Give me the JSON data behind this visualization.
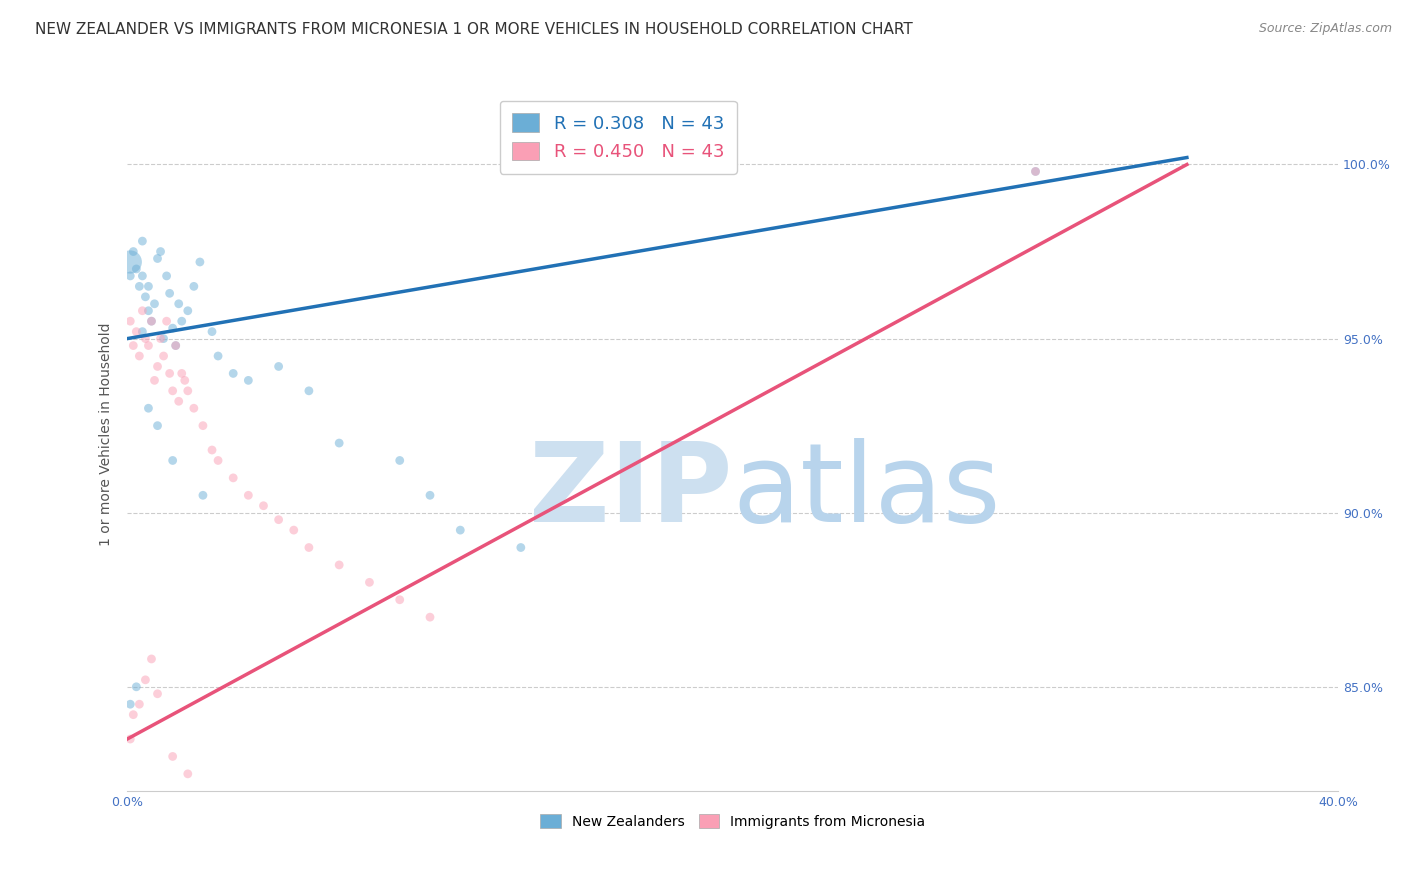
{
  "title": "NEW ZEALANDER VS IMMIGRANTS FROM MICRONESIA 1 OR MORE VEHICLES IN HOUSEHOLD CORRELATION CHART",
  "source": "Source: ZipAtlas.com",
  "ylabel": "1 or more Vehicles in Household",
  "nz_color": "#6baed6",
  "im_color": "#fa9fb5",
  "nz_line_color": "#2171b5",
  "im_line_color": "#e8537a",
  "background_color": "#ffffff",
  "grid_color": "#cccccc",
  "watermark_zip_color": "#cde0f0",
  "watermark_atlas_color": "#b8d4ec",
  "nz_R": 0.308,
  "im_R": 0.45,
  "N": 43,
  "title_fontsize": 11,
  "source_fontsize": 9,
  "axis_label_fontsize": 10,
  "tick_fontsize": 9,
  "legend_fontsize": 13,
  "xlim": [
    0.0,
    40.0
  ],
  "ylim": [
    82.0,
    102.5
  ],
  "nz_x": [
    0.1,
    0.1,
    0.2,
    0.3,
    0.4,
    0.5,
    0.5,
    0.6,
    0.7,
    0.7,
    0.8,
    0.9,
    1.0,
    1.1,
    1.2,
    1.3,
    1.4,
    1.5,
    1.6,
    1.7,
    1.8,
    2.0,
    2.2,
    2.4,
    2.8,
    3.0,
    3.5,
    4.0,
    5.0,
    6.0,
    7.0,
    9.0,
    10.0,
    11.0,
    13.0,
    0.1,
    0.3,
    0.5,
    0.7,
    1.0,
    1.5,
    2.5,
    30.0
  ],
  "nz_y": [
    97.2,
    96.8,
    97.5,
    97.0,
    96.5,
    96.8,
    97.8,
    96.2,
    95.8,
    96.5,
    95.5,
    96.0,
    97.3,
    97.5,
    95.0,
    96.8,
    96.3,
    95.3,
    94.8,
    96.0,
    95.5,
    95.8,
    96.5,
    97.2,
    95.2,
    94.5,
    94.0,
    93.8,
    94.2,
    93.5,
    92.0,
    91.5,
    90.5,
    89.5,
    89.0,
    84.5,
    85.0,
    95.2,
    93.0,
    92.5,
    91.5,
    90.5,
    99.8
  ],
  "nz_sizes": [
    280,
    40,
    40,
    40,
    40,
    40,
    40,
    40,
    40,
    40,
    40,
    40,
    40,
    40,
    40,
    40,
    40,
    40,
    40,
    40,
    40,
    40,
    40,
    40,
    40,
    40,
    40,
    40,
    40,
    40,
    40,
    40,
    40,
    40,
    40,
    40,
    40,
    40,
    40,
    40,
    40,
    40,
    40
  ],
  "im_x": [
    0.1,
    0.2,
    0.3,
    0.4,
    0.5,
    0.6,
    0.7,
    0.8,
    0.9,
    1.0,
    1.1,
    1.2,
    1.3,
    1.4,
    1.5,
    1.6,
    1.7,
    1.8,
    1.9,
    2.0,
    2.2,
    2.5,
    2.8,
    3.0,
    3.5,
    4.0,
    4.5,
    5.0,
    5.5,
    6.0,
    7.0,
    8.0,
    9.0,
    10.0,
    0.1,
    0.2,
    0.4,
    0.6,
    0.8,
    1.0,
    1.5,
    2.0,
    30.0
  ],
  "im_y": [
    95.5,
    94.8,
    95.2,
    94.5,
    95.8,
    95.0,
    94.8,
    95.5,
    93.8,
    94.2,
    95.0,
    94.5,
    95.5,
    94.0,
    93.5,
    94.8,
    93.2,
    94.0,
    93.8,
    93.5,
    93.0,
    92.5,
    91.8,
    91.5,
    91.0,
    90.5,
    90.2,
    89.8,
    89.5,
    89.0,
    88.5,
    88.0,
    87.5,
    87.0,
    83.5,
    84.2,
    84.5,
    85.2,
    85.8,
    84.8,
    83.0,
    82.5,
    99.8
  ],
  "im_sizes": [
    40,
    40,
    40,
    40,
    40,
    40,
    40,
    40,
    40,
    40,
    40,
    40,
    40,
    40,
    40,
    40,
    40,
    40,
    40,
    40,
    40,
    40,
    40,
    40,
    40,
    40,
    40,
    40,
    40,
    40,
    40,
    40,
    40,
    40,
    40,
    40,
    40,
    40,
    40,
    40,
    40,
    40,
    40
  ],
  "nz_line_x0": 0.0,
  "nz_line_y0": 95.0,
  "nz_line_x1": 35.0,
  "nz_line_y1": 100.2,
  "im_line_x0": 0.0,
  "im_line_y0": 83.5,
  "im_line_x1": 35.0,
  "im_line_y1": 100.0
}
